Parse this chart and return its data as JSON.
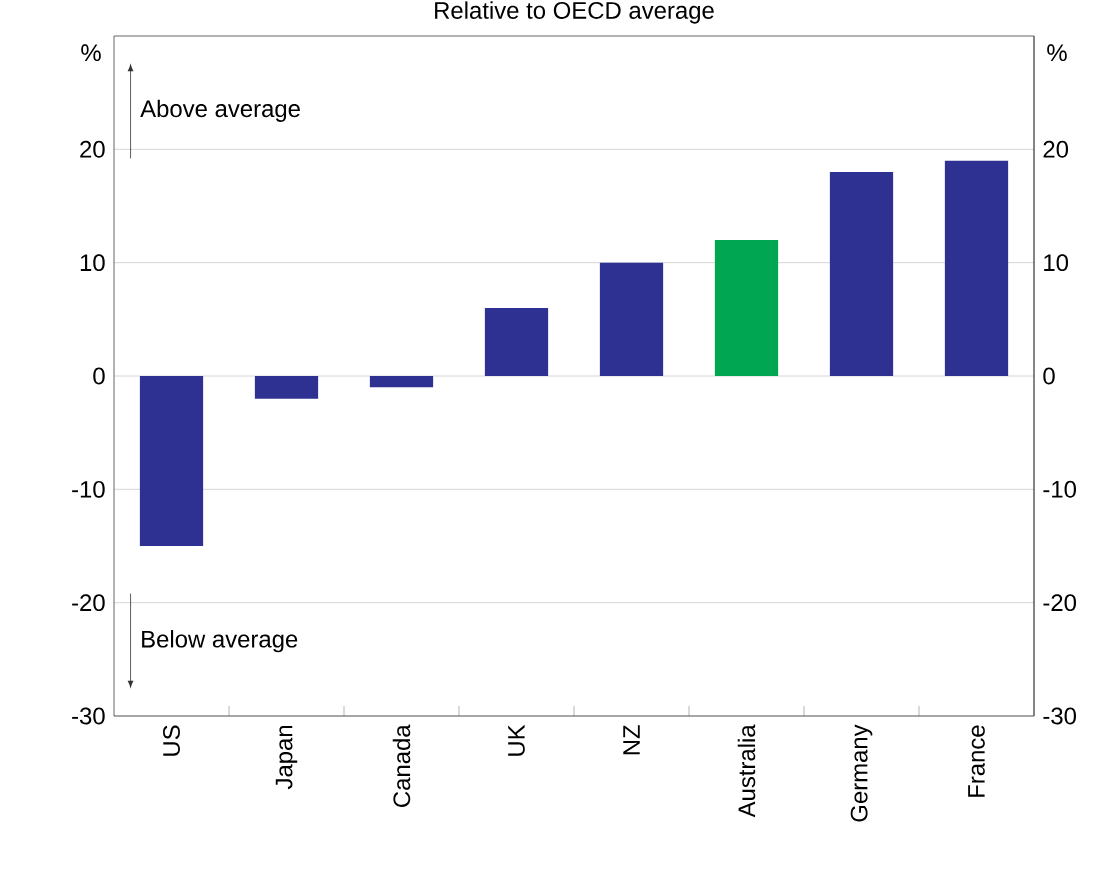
{
  "chart_data": {
    "type": "bar",
    "title": "Relative to OECD average",
    "ylabel": "%",
    "y2label": "%",
    "categories": [
      "US",
      "Japan",
      "Canada",
      "UK",
      "NZ",
      "Australia",
      "Germany",
      "France"
    ],
    "values": [
      -15,
      -2,
      -1,
      6,
      10,
      12,
      18,
      19
    ],
    "colors": [
      "#2e3192",
      "#2e3192",
      "#2e3192",
      "#2e3192",
      "#2e3192",
      "#00a651",
      "#2e3192",
      "#2e3192"
    ],
    "ylim": [
      -30,
      30
    ],
    "yticks": [
      -30,
      -20,
      -10,
      0,
      10,
      20
    ],
    "y2lim": [
      -30,
      30
    ],
    "y2ticks": [
      -30,
      -20,
      -10,
      0,
      10,
      20
    ],
    "grid": "y",
    "annotations": [
      "Above average",
      "Below average"
    ]
  }
}
